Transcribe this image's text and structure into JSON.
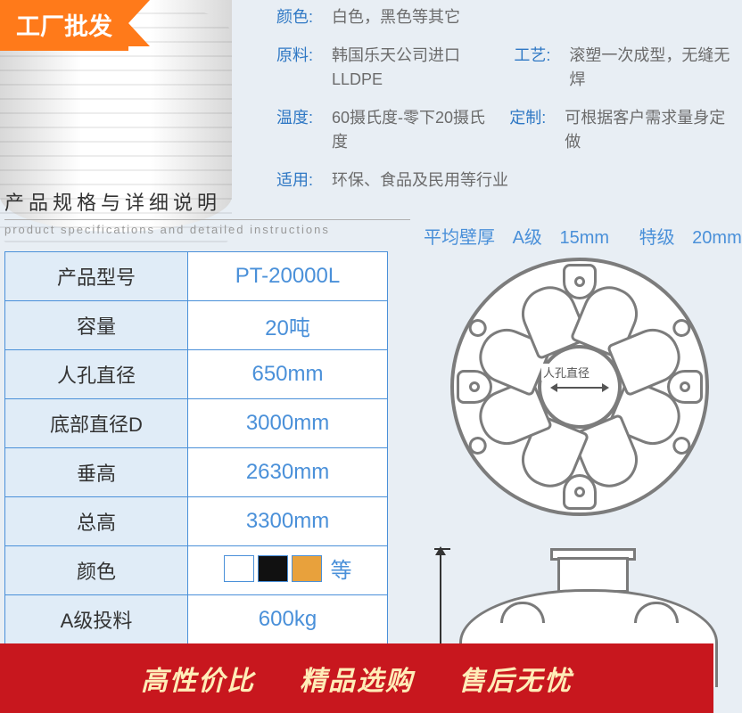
{
  "badge": {
    "label": "工厂批发"
  },
  "props": {
    "color_k": "颜色:",
    "color_v": "白色，黑色等其它",
    "material_k": "原料:",
    "material_v": "韩国乐天公司进口LLDPE",
    "process_k": "工艺:",
    "process_v": "滚塑一次成型，无缝无焊",
    "temp_k": "温度:",
    "temp_v": "60摄氏度-零下20摄氏度",
    "custom_k": "定制:",
    "custom_v": "可根据客户需求量身定做",
    "apply_k": "适用:",
    "apply_v": "环保、食品及民用等行业"
  },
  "section": {
    "cn": "产品规格与详细说明",
    "en": "product specifications and detailed instructions"
  },
  "spec_table": {
    "rows": [
      {
        "k": "产品型号",
        "v": "PT-20000L"
      },
      {
        "k": "容量",
        "v": "20吨"
      },
      {
        "k": "人孔直径",
        "v": "650mm"
      },
      {
        "k": "底部直径D",
        "v": "3000mm"
      },
      {
        "k": "垂高",
        "v": "2630mm"
      },
      {
        "k": "总高",
        "v": "3300mm"
      }
    ],
    "color_row_k": "颜色",
    "color_row_etc": "等",
    "swatch_colors": [
      "#ffffff",
      "#111111",
      "#e8a13c"
    ],
    "feed_row_k": "A级投料",
    "feed_row_v": "600kg"
  },
  "diagram": {
    "title_prefix": "平均壁厚",
    "grade_a": "A级",
    "grade_a_val": "15mm",
    "grade_s": "特级",
    "grade_s_val": "20mm",
    "manhole_label": "人孔直径",
    "spoke_count": 8,
    "lug_angles": [
      0,
      90,
      180,
      270
    ],
    "knob_angles": [
      30,
      150,
      210,
      330
    ],
    "colors": {
      "stroke": "#7c7c7c",
      "accent": "#4a90d9"
    }
  },
  "footer": {
    "a": "高性价比",
    "b": "精品选购",
    "c": "售后无忧"
  }
}
